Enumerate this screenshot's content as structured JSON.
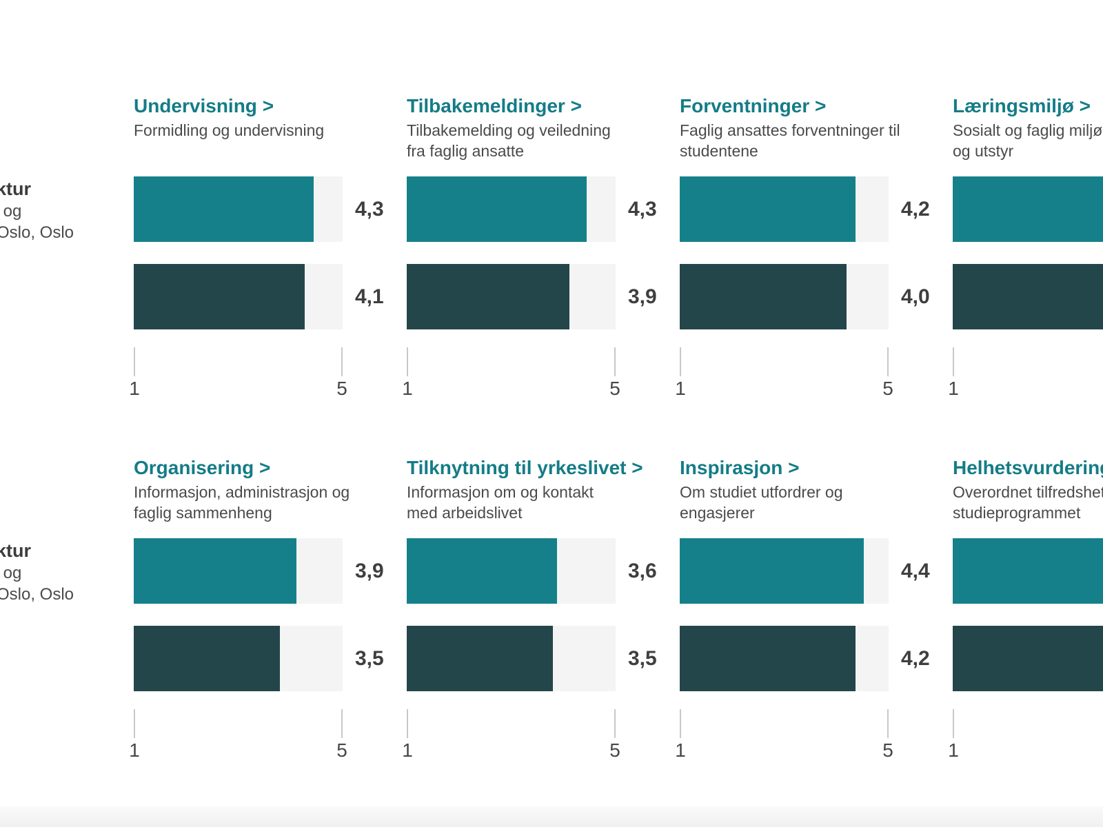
{
  "colors": {
    "series1_bar": "#15808A",
    "series2_bar": "#23464A",
    "link_teal": "#147C87",
    "bar_track": "#F4F4F4",
    "subtitle_gray": "#4A4A4A",
    "value_gray": "#3F3F3F"
  },
  "axis": {
    "min": "1",
    "max": "5"
  },
  "left_labels": {
    "row1": {
      "line1_bold": "ktur",
      "line2": "- og",
      "line3": "Oslo, Oslo"
    },
    "row2": {
      "line1_bold": "ktur",
      "line2": "- og",
      "line3": "Oslo, Oslo"
    }
  },
  "rows": [
    {
      "charts": [
        {
          "title": "Undervisning >",
          "subtitle_lines": [
            "Formidling og undervisning",
            ""
          ],
          "values": [
            4.3,
            4.1
          ],
          "value_labels": [
            "4,3",
            "4,1"
          ]
        },
        {
          "title": "Tilbakemeldinger >",
          "subtitle_lines": [
            "Tilbakemelding og veiledning",
            "fra faglig ansatte"
          ],
          "values": [
            4.3,
            3.9
          ],
          "value_labels": [
            "4,3",
            "3,9"
          ]
        },
        {
          "title": "Forventninger >",
          "subtitle_lines": [
            "Faglig ansattes forventninger til",
            "studentene"
          ],
          "values": [
            4.2,
            4.0
          ],
          "value_labels": [
            "4,2",
            "4,0"
          ]
        },
        {
          "title": "Læringsmiljø >",
          "subtitle_lines": [
            "Sosialt og faglig miljø",
            "og utstyr"
          ],
          "values": [
            null,
            null
          ],
          "value_labels": [
            "",
            ""
          ]
        }
      ]
    },
    {
      "charts": [
        {
          "title": "Organisering >",
          "subtitle_lines": [
            "Informasjon, administrasjon og",
            "faglig sammenheng"
          ],
          "values": [
            3.9,
            3.5
          ],
          "value_labels": [
            "3,9",
            "3,5"
          ]
        },
        {
          "title": "Tilknytning til yrkeslivet >",
          "subtitle_lines": [
            "Informasjon om og kontakt",
            "med arbeidslivet"
          ],
          "values": [
            3.6,
            3.5
          ],
          "value_labels": [
            "3,6",
            "3,5"
          ]
        },
        {
          "title": "Inspirasjon >",
          "subtitle_lines": [
            "Om studiet utfordrer og",
            "engasjerer"
          ],
          "values": [
            4.4,
            4.2
          ],
          "value_labels": [
            "4,4",
            "4,2"
          ]
        },
        {
          "title": "Helhetsvurdering >",
          "subtitle_lines": [
            "Overordnet tilfredshet",
            "studieprogrammet"
          ],
          "values": [
            null,
            null
          ],
          "value_labels": [
            "",
            ""
          ]
        }
      ]
    }
  ],
  "chart_data": [
    {
      "type": "bar",
      "title": "Undervisning >",
      "subtitle": "Formidling og undervisning",
      "series": [
        {
          "name": "series-teal",
          "value": 4.3,
          "label": "4,3"
        },
        {
          "name": "series-dark",
          "value": 4.1,
          "label": "4,1"
        }
      ],
      "xlim": [
        1,
        5
      ],
      "orientation": "horizontal"
    },
    {
      "type": "bar",
      "title": "Tilbakemeldinger >",
      "subtitle": "Tilbakemelding og veiledning fra faglig ansatte",
      "series": [
        {
          "name": "series-teal",
          "value": 4.3,
          "label": "4,3"
        },
        {
          "name": "series-dark",
          "value": 3.9,
          "label": "3,9"
        }
      ],
      "xlim": [
        1,
        5
      ],
      "orientation": "horizontal"
    },
    {
      "type": "bar",
      "title": "Forventninger >",
      "subtitle": "Faglig ansattes forventninger til studentene",
      "series": [
        {
          "name": "series-teal",
          "value": 4.2,
          "label": "4,2"
        },
        {
          "name": "series-dark",
          "value": 4.0,
          "label": "4,0"
        }
      ],
      "xlim": [
        1,
        5
      ],
      "orientation": "horizontal"
    },
    {
      "type": "bar",
      "title": "Læringsmiljø >",
      "subtitle": "Sosialt og faglig miljø og utstyr (clipped at viewport edge)",
      "series": [
        {
          "name": "series-teal",
          "value": null,
          "label": ""
        },
        {
          "name": "series-dark",
          "value": null,
          "label": ""
        }
      ],
      "xlim": [
        1,
        5
      ],
      "orientation": "horizontal"
    },
    {
      "type": "bar",
      "title": "Organisering >",
      "subtitle": "Informasjon, administrasjon og faglig sammenheng",
      "series": [
        {
          "name": "series-teal",
          "value": 3.9,
          "label": "3,9"
        },
        {
          "name": "series-dark",
          "value": 3.5,
          "label": "3,5"
        }
      ],
      "xlim": [
        1,
        5
      ],
      "orientation": "horizontal"
    },
    {
      "type": "bar",
      "title": "Tilknytning til yrkeslivet >",
      "subtitle": "Informasjon om og kontakt med arbeidslivet",
      "series": [
        {
          "name": "series-teal",
          "value": 3.6,
          "label": "3,6"
        },
        {
          "name": "series-dark",
          "value": 3.5,
          "label": "3,5"
        }
      ],
      "xlim": [
        1,
        5
      ],
      "orientation": "horizontal"
    },
    {
      "type": "bar",
      "title": "Inspirasjon >",
      "subtitle": "Om studiet utfordrer og engasjerer",
      "series": [
        {
          "name": "series-teal",
          "value": 4.4,
          "label": "4,4"
        },
        {
          "name": "series-dark",
          "value": 4.2,
          "label": "4,2"
        }
      ],
      "xlim": [
        1,
        5
      ],
      "orientation": "horizontal"
    },
    {
      "type": "bar",
      "title": "Helhetsvurdering >",
      "subtitle": "Overordnet tilfredshet studieprogrammet (clipped at viewport edge)",
      "series": [
        {
          "name": "series-teal",
          "value": null,
          "label": ""
        },
        {
          "name": "series-dark",
          "value": null,
          "label": ""
        }
      ],
      "xlim": [
        1,
        5
      ],
      "orientation": "horizontal"
    }
  ]
}
